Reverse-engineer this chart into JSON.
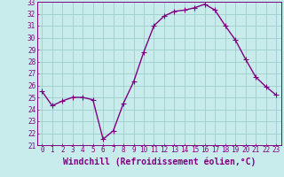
{
  "x": [
    0,
    1,
    2,
    3,
    4,
    5,
    6,
    7,
    8,
    9,
    10,
    11,
    12,
    13,
    14,
    15,
    16,
    17,
    18,
    19,
    20,
    21,
    22,
    23
  ],
  "y": [
    25.5,
    24.3,
    24.7,
    25.0,
    25.0,
    24.8,
    21.5,
    22.2,
    24.5,
    26.3,
    28.8,
    31.0,
    31.8,
    32.2,
    32.3,
    32.5,
    32.8,
    32.3,
    31.0,
    29.8,
    28.2,
    26.7,
    25.9,
    25.2
  ],
  "line_color": "#800080",
  "marker": "+",
  "marker_size": 4,
  "bg_color": "#c8ecec",
  "grid_color": "#a0cccc",
  "label_color": "#800080",
  "xlabel": "Windchill (Refroidissement éolien,°C)",
  "xlabel_fontsize": 7,
  "ylim": [
    21,
    33
  ],
  "yticks": [
    21,
    22,
    23,
    24,
    25,
    26,
    27,
    28,
    29,
    30,
    31,
    32,
    33
  ],
  "xticks": [
    0,
    1,
    2,
    3,
    4,
    5,
    6,
    7,
    8,
    9,
    10,
    11,
    12,
    13,
    14,
    15,
    16,
    17,
    18,
    19,
    20,
    21,
    22,
    23
  ],
  "tick_fontsize": 5.5,
  "line_width": 1.0
}
